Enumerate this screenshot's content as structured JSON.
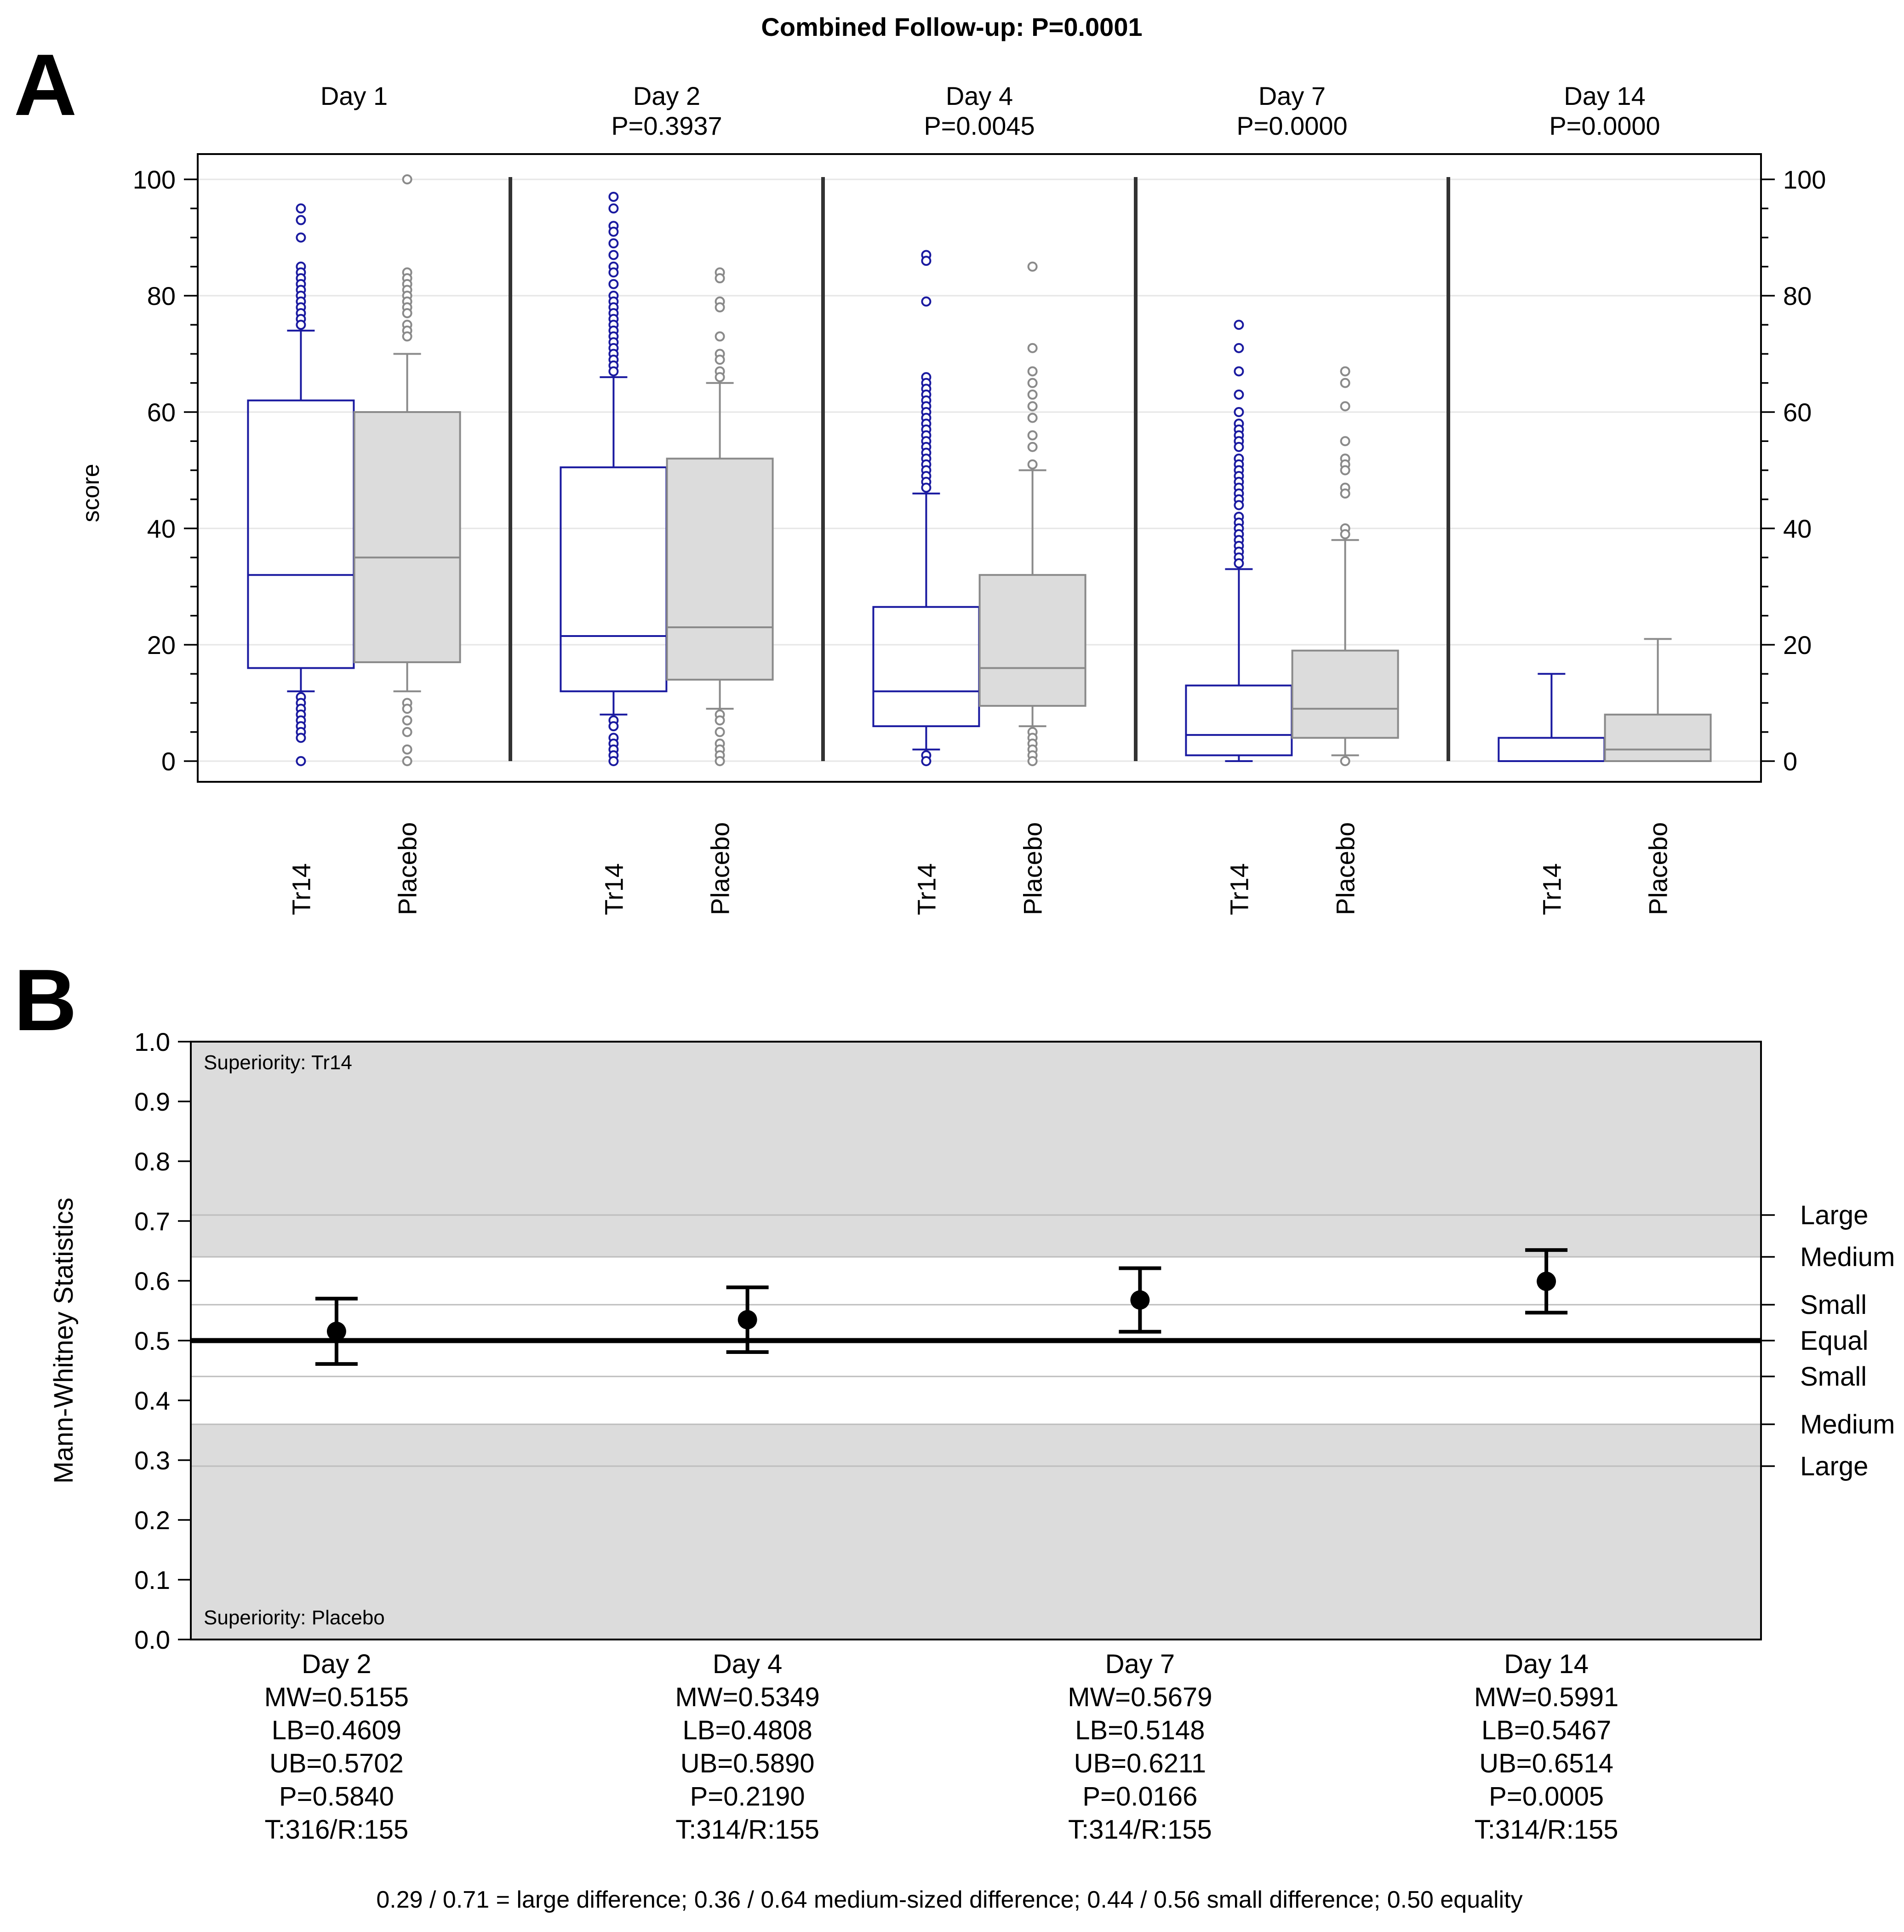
{
  "figure": {
    "main_title": "Combined Follow-up: P=0.0001",
    "footnote": "0.29 / 0.71 = large difference; 0.36 / 0.64 medium-sized difference; 0.44 / 0.56 small difference; 0.50 equality"
  },
  "colors": {
    "tr14": "#1a1aa0",
    "placebo_stroke": "#8a8a8a",
    "placebo_fill": "#dcdcdc",
    "shade": "#dcdcdc",
    "axis": "#000000",
    "divider": "#333333"
  },
  "chart_data": [
    {
      "panel": "A",
      "type": "box",
      "ylabel": "score",
      "ylim": [
        0,
        100
      ],
      "yticks": [
        0,
        20,
        40,
        60,
        80,
        100
      ],
      "yticks_labels": [
        "0",
        "20",
        "40",
        "60",
        "80",
        "100"
      ],
      "groups": [
        {
          "label": "Day 1",
          "p": "",
          "boxes": [
            {
              "name": "Tr14",
              "q1": 16,
              "median": 32,
              "q3": 62,
              "wlow": 12,
              "whigh": 74,
              "outliers": [
                95,
                93,
                90,
                85,
                84,
                83,
                82,
                81,
                80,
                79,
                78,
                77,
                76,
                75,
                11,
                10,
                9,
                8,
                7,
                6,
                5,
                4,
                0
              ]
            },
            {
              "name": "Placebo",
              "q1": 17,
              "median": 35,
              "q3": 60,
              "wlow": 12,
              "whigh": 70,
              "outliers": [
                100,
                84,
                83,
                82,
                81,
                80,
                79,
                78,
                77,
                75,
                74,
                73,
                10,
                9,
                7,
                5,
                2,
                0
              ]
            }
          ]
        },
        {
          "label": "Day 2",
          "p": "P=0.3937",
          "boxes": [
            {
              "name": "Tr14",
              "q1": 12,
              "median": 21.5,
              "q3": 50.5,
              "wlow": 8,
              "whigh": 66,
              "outliers": [
                97,
                95,
                92,
                91,
                89,
                87,
                85,
                84,
                82,
                80,
                79,
                78,
                77,
                76,
                75,
                74,
                73,
                72,
                71,
                70,
                69,
                68,
                67,
                7,
                6,
                4,
                3,
                2,
                1,
                0
              ]
            },
            {
              "name": "Placebo",
              "q1": 14,
              "median": 23,
              "q3": 52,
              "wlow": 9,
              "whigh": 65,
              "outliers": [
                84,
                83,
                79,
                78,
                73,
                70,
                69,
                67,
                66,
                8,
                7,
                5,
                3,
                2,
                1,
                0
              ]
            }
          ]
        },
        {
          "label": "Day 4",
          "p": "P=0.0045",
          "boxes": [
            {
              "name": "Tr14",
              "q1": 6,
              "median": 12,
              "q3": 26.5,
              "wlow": 2,
              "whigh": 46,
              "outliers": [
                87,
                86,
                79,
                66,
                65,
                64,
                63,
                62,
                61,
                60,
                59,
                58,
                57,
                56,
                55,
                54,
                53,
                52,
                51,
                50,
                49,
                48,
                47,
                1,
                0
              ]
            },
            {
              "name": "Placebo",
              "q1": 9.5,
              "median": 16,
              "q3": 32,
              "wlow": 6,
              "whigh": 50,
              "outliers": [
                85,
                71,
                67,
                65,
                63,
                61,
                59,
                56,
                54,
                51,
                5,
                4,
                3,
                2,
                1,
                0
              ]
            }
          ]
        },
        {
          "label": "Day 7",
          "p": "P=0.0000",
          "boxes": [
            {
              "name": "Tr14",
              "q1": 1,
              "median": 4.5,
              "q3": 13,
              "wlow": 0,
              "whigh": 33,
              "outliers": [
                75,
                71,
                67,
                63,
                60,
                58,
                57,
                56,
                55,
                54,
                52,
                51,
                50,
                49,
                48,
                47,
                46,
                45,
                44,
                42,
                41,
                40,
                39,
                38,
                37,
                36,
                35,
                34
              ]
            },
            {
              "name": "Placebo",
              "q1": 4,
              "median": 9,
              "q3": 19,
              "wlow": 1,
              "whigh": 38,
              "outliers": [
                67,
                65,
                61,
                55,
                52,
                51,
                50,
                47,
                46,
                40,
                39,
                0
              ]
            }
          ]
        },
        {
          "label": "Day 14",
          "p": "P=0.0000",
          "boxes": [
            {
              "name": "Tr14",
              "q1": 0,
              "median": 0,
              "q3": 4,
              "wlow": 0,
              "whigh": 15,
              "outliers": []
            },
            {
              "name": "Placebo",
              "q1": 0,
              "median": 2,
              "q3": 8,
              "wlow": 0,
              "whigh": 21,
              "outliers": []
            }
          ]
        }
      ]
    },
    {
      "panel": "B",
      "type": "errorbar",
      "ylabel": "Mann-Whitney Statistics",
      "ylim": [
        0,
        1
      ],
      "yticks": [
        0,
        0.1,
        0.2,
        0.3,
        0.4,
        0.5,
        0.6,
        0.7,
        0.8,
        0.9,
        1.0
      ],
      "yticks_labels": [
        "0.0",
        "0.1",
        "0.2",
        "0.3",
        "0.4",
        "0.5",
        "0.6",
        "0.7",
        "0.8",
        "0.9",
        "1.0"
      ],
      "region_top_label": "Superiority: Tr14",
      "region_bottom_label": "Superiority: Placebo",
      "thresholds": [
        {
          "value": 0.71,
          "label": "Large"
        },
        {
          "value": 0.64,
          "label": "Medium"
        },
        {
          "value": 0.56,
          "label": "Small"
        },
        {
          "value": 0.5,
          "label": "Equal"
        },
        {
          "value": 0.44,
          "label": "Small"
        },
        {
          "value": 0.36,
          "label": "Medium"
        },
        {
          "value": 0.29,
          "label": "Large"
        }
      ],
      "points": [
        {
          "day": "Day 2",
          "mw": 0.5155,
          "lb": 0.4609,
          "ub": 0.5702,
          "lines": [
            "MW=0.5155",
            "LB=0.4609",
            "UB=0.5702",
            "P=0.5840",
            "T:316/R:155"
          ]
        },
        {
          "day": "Day 4",
          "mw": 0.5349,
          "lb": 0.4808,
          "ub": 0.589,
          "lines": [
            "MW=0.5349",
            "LB=0.4808",
            "UB=0.5890",
            "P=0.2190",
            "T:314/R:155"
          ]
        },
        {
          "day": "Day 7",
          "mw": 0.5679,
          "lb": 0.5148,
          "ub": 0.6211,
          "lines": [
            "MW=0.5679",
            "LB=0.5148",
            "UB=0.6211",
            "P=0.0166",
            "T:314/R:155"
          ]
        },
        {
          "day": "Day 14",
          "mw": 0.5991,
          "lb": 0.5467,
          "ub": 0.6514,
          "lines": [
            "MW=0.5991",
            "LB=0.5467",
            "UB=0.6514",
            "P=0.0005",
            "T:314/R:155"
          ]
        }
      ]
    }
  ]
}
